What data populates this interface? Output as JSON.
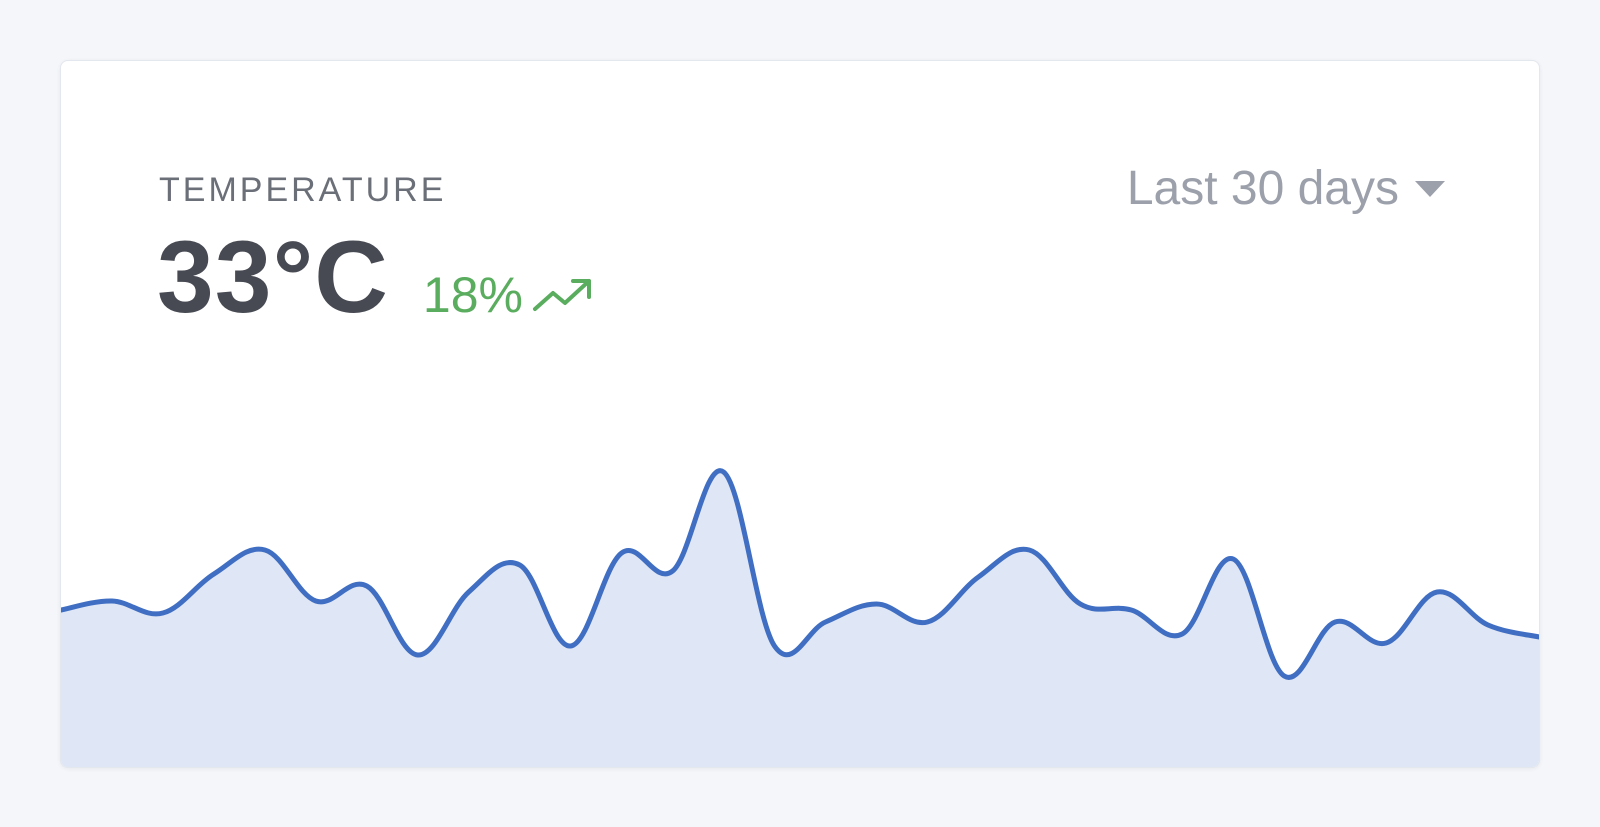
{
  "card": {
    "label": "TEMPERATURE",
    "value": "33°C",
    "change": "18%",
    "trend_icon": "trending-up-icon",
    "range_selector": {
      "value": "Last 30 days",
      "caret_icon": "caret-down-icon"
    }
  },
  "colors": {
    "line": "#3f6ec2",
    "fill": "#dfe6f5",
    "positive": "#5aac5e",
    "value_text": "#474a52",
    "muted_text": "#9ba0aa"
  },
  "chart_data": {
    "type": "area",
    "title": "",
    "xlabel": "",
    "ylabel": "",
    "grid": false,
    "legend": "none",
    "ylim": [
      0,
      100
    ],
    "values": [
      47,
      50,
      46,
      59,
      67,
      50,
      55,
      32,
      53,
      62,
      35,
      66,
      60,
      93,
      35,
      43,
      49,
      43,
      58,
      67,
      49,
      47,
      39,
      64,
      25,
      43,
      36,
      53,
      42,
      38
    ]
  }
}
